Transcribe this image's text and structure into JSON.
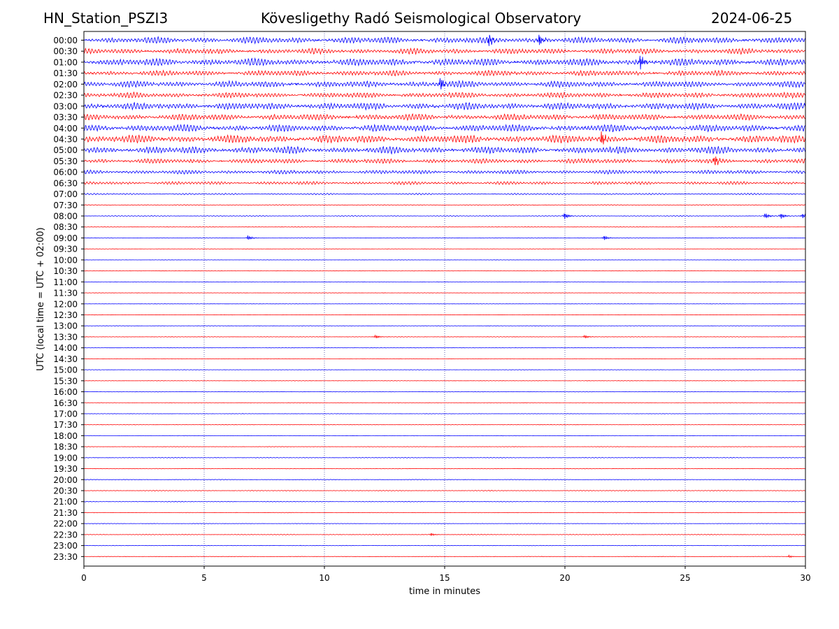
{
  "header": {
    "station": "HN_Station_PSZI3",
    "observatory": "Kövesligethy Radó Seismological Observatory",
    "date": "2024-06-25"
  },
  "chart_data": {
    "type": "line",
    "title": "Kövesligethy Radó Seismological Observatory",
    "xlabel": "time in minutes",
    "ylabel": "UTC (local time = UTC + 02:00)",
    "xlim": [
      0,
      30
    ],
    "x_ticks": [
      "0",
      "5",
      "10",
      "15",
      "20",
      "25",
      "30"
    ],
    "grid": "vertical dotted lines at 5-minute intervals",
    "colors": {
      "even_rows": "#0000ff",
      "odd_rows": "#ff0000",
      "grid": "#000080"
    },
    "rows": [
      {
        "label": "00:00",
        "amplitude": 8
      },
      {
        "label": "00:30",
        "amplitude": 7
      },
      {
        "label": "01:00",
        "amplitude": 9
      },
      {
        "label": "01:30",
        "amplitude": 7
      },
      {
        "label": "02:00",
        "amplitude": 8
      },
      {
        "label": "02:30",
        "amplitude": 7
      },
      {
        "label": "03:00",
        "amplitude": 9
      },
      {
        "label": "03:30",
        "amplitude": 8
      },
      {
        "label": "04:00",
        "amplitude": 9
      },
      {
        "label": "04:30",
        "amplitude": 10
      },
      {
        "label": "05:00",
        "amplitude": 9
      },
      {
        "label": "05:30",
        "amplitude": 6
      },
      {
        "label": "06:00",
        "amplitude": 5
      },
      {
        "label": "06:30",
        "amplitude": 4
      },
      {
        "label": "07:00",
        "amplitude": 2
      },
      {
        "label": "07:30",
        "amplitude": 1
      },
      {
        "label": "08:00",
        "amplitude": 1
      },
      {
        "label": "08:30",
        "amplitude": 0.6
      },
      {
        "label": "09:00",
        "amplitude": 0.8
      },
      {
        "label": "09:30",
        "amplitude": 0.4
      },
      {
        "label": "10:00",
        "amplitude": 0.4
      },
      {
        "label": "10:30",
        "amplitude": 0.4
      },
      {
        "label": "11:00",
        "amplitude": 0.4
      },
      {
        "label": "11:30",
        "amplitude": 0.4
      },
      {
        "label": "12:00",
        "amplitude": 0.4
      },
      {
        "label": "12:30",
        "amplitude": 0.4
      },
      {
        "label": "13:00",
        "amplitude": 0.6
      },
      {
        "label": "13:30",
        "amplitude": 0.6
      },
      {
        "label": "14:00",
        "amplitude": 0.4
      },
      {
        "label": "14:30",
        "amplitude": 0.4
      },
      {
        "label": "15:00",
        "amplitude": 0.5
      },
      {
        "label": "15:30",
        "amplitude": 0.5
      },
      {
        "label": "16:00",
        "amplitude": 0.7
      },
      {
        "label": "16:30",
        "amplitude": 0.5
      },
      {
        "label": "17:00",
        "amplitude": 0.5
      },
      {
        "label": "17:30",
        "amplitude": 0.5
      },
      {
        "label": "18:00",
        "amplitude": 0.5
      },
      {
        "label": "18:30",
        "amplitude": 0.6
      },
      {
        "label": "19:00",
        "amplitude": 0.8
      },
      {
        "label": "19:30",
        "amplitude": 0.7
      },
      {
        "label": "20:00",
        "amplitude": 0.9
      },
      {
        "label": "20:30",
        "amplitude": 0.9
      },
      {
        "label": "21:00",
        "amplitude": 0.9
      },
      {
        "label": "21:30",
        "amplitude": 0.6
      },
      {
        "label": "22:00",
        "amplitude": 0.6
      },
      {
        "label": "22:30",
        "amplitude": 0.8
      },
      {
        "label": "23:00",
        "amplitude": 0.6
      },
      {
        "label": "23:30",
        "amplitude": 0.6
      }
    ],
    "events": [
      {
        "row": "00:00",
        "x": 16.8,
        "amplitude": 10
      },
      {
        "row": "00:00",
        "x": 18.9,
        "amplitude": 11
      },
      {
        "row": "01:00",
        "x": 23.1,
        "amplitude": 12
      },
      {
        "row": "02:00",
        "x": 14.8,
        "amplitude": 12
      },
      {
        "row": "04:30",
        "x": 21.5,
        "amplitude": 12
      },
      {
        "row": "05:30",
        "x": 26.2,
        "amplitude": 9
      },
      {
        "row": "08:00",
        "x": 19.95,
        "amplitude": 6
      },
      {
        "row": "08:00",
        "x": 28.3,
        "amplitude": 5
      },
      {
        "row": "08:00",
        "x": 28.95,
        "amplitude": 5
      },
      {
        "row": "08:00",
        "x": 29.85,
        "amplitude": 4
      },
      {
        "row": "09:00",
        "x": 6.8,
        "amplitude": 4
      },
      {
        "row": "09:00",
        "x": 21.6,
        "amplitude": 4
      },
      {
        "row": "13:30",
        "x": 12.1,
        "amplitude": 3
      },
      {
        "row": "13:30",
        "x": 20.8,
        "amplitude": 3
      },
      {
        "row": "22:30",
        "x": 14.4,
        "amplitude": 2.5
      },
      {
        "row": "23:30",
        "x": 29.3,
        "amplitude": 2
      }
    ]
  }
}
